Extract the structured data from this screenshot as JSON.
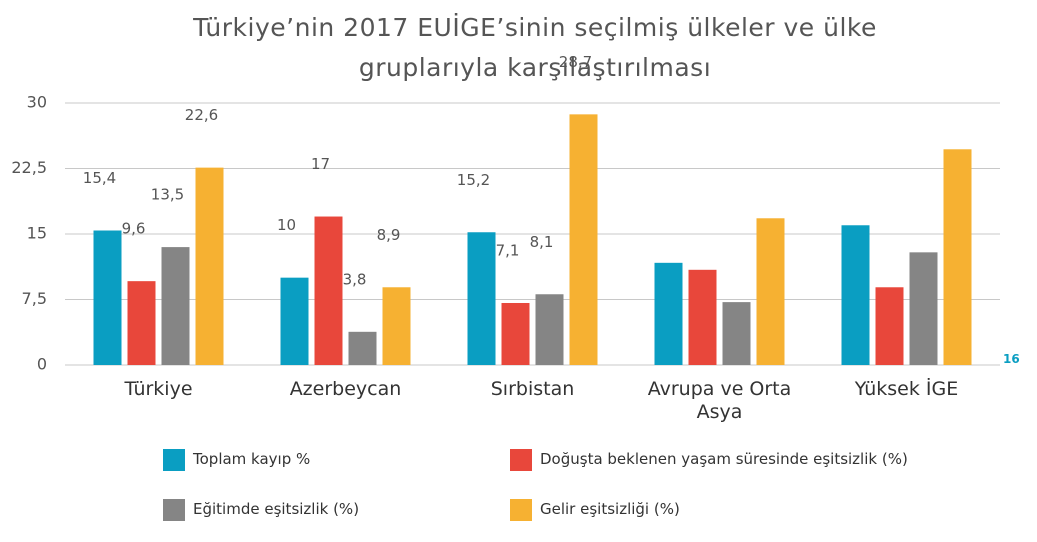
{
  "chart_data": {
    "type": "bar",
    "title": "Türkiye’nin 2017 EUİGE’sinin seçilmiş ülkeler ve ülke gruplarıyla karşılaştırılması",
    "categories": [
      "Türkiye",
      "Azerbeycan",
      "Sırbistan",
      "Avrupa ve Orta Asya",
      "Yüksek İGE"
    ],
    "series": [
      {
        "name": "Toplam kayıp %",
        "color": "#0a9ec2",
        "values": [
          15.4,
          10,
          15.2,
          11.7,
          16.0
        ],
        "value_labels": [
          "15,4",
          "10",
          "15,2",
          null,
          null
        ]
      },
      {
        "name": "Doğuşta beklenen yaşam süresinde eşitsizlik (%)",
        "color": "#e8473b",
        "values": [
          9.6,
          17,
          7.1,
          10.9,
          8.9
        ],
        "value_labels": [
          "9,6",
          "17",
          "7,1",
          null,
          null
        ]
      },
      {
        "name": "Eğitimde eşitsizlik (%)",
        "color": "#858585",
        "values": [
          13.5,
          3.8,
          8.1,
          7.2,
          12.9
        ],
        "value_labels": [
          "13,5",
          "3,8",
          "8,1",
          null,
          null
        ]
      },
      {
        "name": "Gelir eşitsizliği (%)",
        "color": "#f6b132",
        "values": [
          22.6,
          8.9,
          28.7,
          16.8,
          24.7
        ],
        "value_labels": [
          "22,6",
          "8,9",
          "28,7",
          null,
          null
        ]
      }
    ],
    "ylim": [
      0,
      30
    ],
    "yticks": [
      0,
      {
        "value": 7.5,
        "label": "7,5"
      },
      15,
      {
        "value": 22.5,
        "label": "22,5"
      },
      30
    ],
    "grid": true,
    "page_number": "16"
  }
}
